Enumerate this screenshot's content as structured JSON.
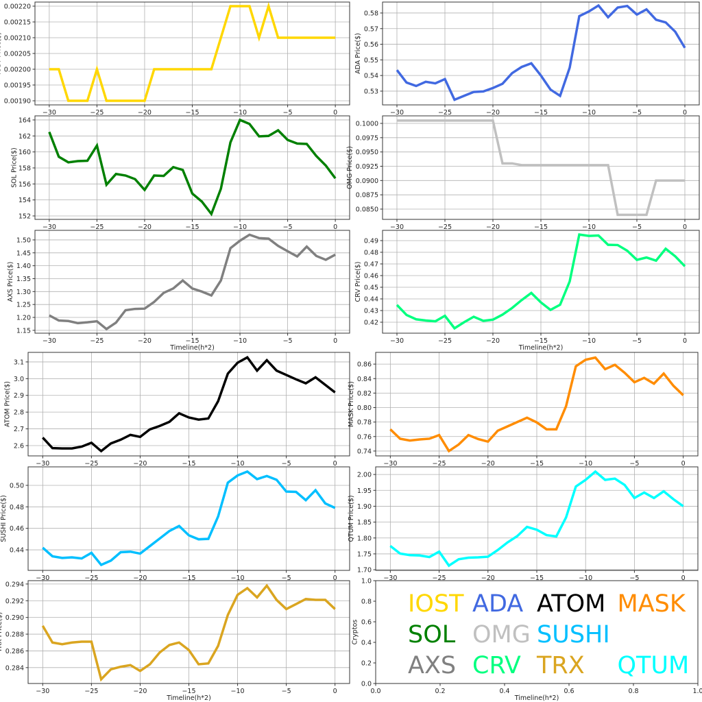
{
  "chart_data": {
    "type": "line",
    "x": [
      -30,
      -29,
      -28,
      -27,
      -26,
      -25,
      -24,
      -23,
      -22,
      -21,
      -20,
      -19,
      -18,
      -17,
      -16,
      -15,
      -14,
      -13,
      -12,
      -11,
      -10,
      -9,
      -8,
      -7,
      -6,
      -5,
      -4,
      -3,
      -2,
      -1,
      0
    ],
    "xlim": [
      -31.5,
      1.5
    ],
    "xticks": [
      "−30",
      "−25",
      "−20",
      "−15",
      "−10",
      "−5",
      "0"
    ],
    "panels": [
      {
        "name": "IOST",
        "ylabel": "IOST Price($)",
        "xlabel": "",
        "color": "#FFD700",
        "ylim": [
          0.001887,
          0.002213
        ],
        "yticks": [
          "0.00190",
          "0.00195",
          "0.00200",
          "0.00205",
          "0.00210",
          "0.00215",
          "0.00220"
        ],
        "values": [
          0.002,
          0.002,
          0.0019,
          0.0019,
          0.0019,
          0.002,
          0.0019,
          0.0019,
          0.0019,
          0.0019,
          0.0019,
          0.002,
          0.002,
          0.002,
          0.002,
          0.002,
          0.002,
          0.002,
          0.0021,
          0.0022,
          0.0022,
          0.0022,
          0.0021,
          0.0022,
          0.0021,
          0.0021,
          0.0021,
          0.0021,
          0.0021,
          0.0021,
          0.0021
        ]
      },
      {
        "name": "ADA",
        "ylabel": "ADA  Price($)",
        "xlabel": "",
        "color": "#4169E1",
        "ylim": [
          0.5212,
          0.587
        ],
        "yticks": [
          "0.53",
          "0.54",
          "0.55",
          "0.56",
          "0.57",
          "0.58"
        ],
        "values": [
          0.5435,
          0.5355,
          0.5333,
          0.536,
          0.535,
          0.5377,
          0.5245,
          0.527,
          0.5295,
          0.5298,
          0.532,
          0.5347,
          0.5415,
          0.5455,
          0.5478,
          0.54,
          0.531,
          0.527,
          0.545,
          0.578,
          0.581,
          0.5848,
          0.5773,
          0.5835,
          0.5845,
          0.579,
          0.5823,
          0.5757,
          0.574,
          0.568,
          0.5577
        ]
      },
      {
        "name": "SOL",
        "ylabel": "SOL Price($)",
        "xlabel": "",
        "color": "#008000",
        "ylim": [
          151.57,
          164.51
        ],
        "yticks": [
          "152",
          "154",
          "156",
          "158",
          "160",
          "162",
          "164"
        ],
        "values": [
          162.5,
          159.4,
          158.7,
          158.85,
          158.9,
          160.8,
          155.9,
          157.25,
          157.05,
          156.6,
          155.25,
          157.05,
          157.0,
          158.1,
          157.75,
          154.8,
          153.8,
          152.25,
          155.4,
          161.2,
          164.0,
          163.5,
          161.95,
          162.0,
          162.7,
          161.5,
          161.05,
          161.0,
          159.5,
          158.3,
          156.7
        ]
      },
      {
        "name": "OMG",
        "ylabel": "OMG  Price($)",
        "xlabel": "",
        "color": "#C0C0C0",
        "ylim": [
          0.0832,
          0.10132
        ],
        "yticks": [
          "0.0850",
          "0.0875",
          "0.0900",
          "0.0925",
          "0.0950",
          "0.0975",
          "0.1000"
        ],
        "values": [
          0.1005,
          0.1005,
          0.1005,
          0.1005,
          0.1005,
          0.1005,
          0.1005,
          0.1005,
          0.1005,
          0.1005,
          0.1005,
          0.093,
          0.093,
          0.0927,
          0.0927,
          0.0927,
          0.0927,
          0.0927,
          0.0927,
          0.0927,
          0.0927,
          0.0927,
          0.0927,
          0.084,
          0.084,
          0.084,
          0.084,
          0.09,
          0.09,
          0.09,
          0.09
        ]
      },
      {
        "name": "AXS",
        "ylabel": "AXS Price($)",
        "xlabel": "Timeline(h*2)",
        "color": "#808080",
        "ylim": [
          1.139,
          1.537
        ],
        "yticks": [
          "1.15",
          "1.20",
          "1.25",
          "1.30",
          "1.35",
          "1.40",
          "1.45",
          "1.50"
        ],
        "values": [
          1.208,
          1.188,
          1.186,
          1.178,
          1.181,
          1.185,
          1.155,
          1.18,
          1.228,
          1.233,
          1.234,
          1.26,
          1.295,
          1.312,
          1.343,
          1.312,
          1.3,
          1.285,
          1.343,
          1.468,
          1.497,
          1.52,
          1.507,
          1.505,
          1.477,
          1.456,
          1.436,
          1.474,
          1.438,
          1.423,
          1.443
        ]
      },
      {
        "name": "CRV",
        "ylabel": "CRV  Price($)",
        "xlabel": "Timeline(h*2)",
        "color": "#00FF7F",
        "ylim": [
          0.4106,
          0.4988
        ],
        "yticks": [
          "0.42",
          "0.43",
          "0.44",
          "0.45",
          "0.46",
          "0.47",
          "0.48",
          "0.49"
        ],
        "values": [
          0.4348,
          0.4262,
          0.4225,
          0.4215,
          0.4208,
          0.4255,
          0.4148,
          0.42,
          0.4247,
          0.4212,
          0.4222,
          0.4265,
          0.4322,
          0.439,
          0.4451,
          0.437,
          0.4306,
          0.435,
          0.455,
          0.4952,
          0.494,
          0.4944,
          0.4864,
          0.4862,
          0.4813,
          0.4735,
          0.4755,
          0.4728,
          0.483,
          0.4765,
          0.468
        ]
      },
      {
        "name": "ATOM",
        "ylabel": "ATOM  Price($)",
        "xlabel": "",
        "color": "#000000",
        "ylim": [
          2.5385,
          3.157
        ],
        "yticks": [
          "2.6",
          "2.7",
          "2.8",
          "2.9",
          "3.0",
          "3.1"
        ],
        "values": [
          2.648,
          2.585,
          2.583,
          2.583,
          2.594,
          2.617,
          2.567,
          2.613,
          2.635,
          2.664,
          2.652,
          2.697,
          2.717,
          2.742,
          2.793,
          2.768,
          2.755,
          2.762,
          2.865,
          3.03,
          3.095,
          3.127,
          3.048,
          3.11,
          3.048,
          3.022,
          2.996,
          2.972,
          3.008,
          2.963,
          2.918
        ]
      },
      {
        "name": "MASK",
        "ylabel": "MASK  Price($)",
        "xlabel": "",
        "color": "#FF8C00",
        "ylim": [
          0.7333,
          0.8762
        ],
        "yticks": [
          "0.74",
          "0.76",
          "0.78",
          "0.80",
          "0.82",
          "0.84",
          "0.86"
        ],
        "values": [
          0.77,
          0.757,
          0.7545,
          0.756,
          0.757,
          0.762,
          0.74,
          0.749,
          0.762,
          0.7565,
          0.753,
          0.768,
          0.774,
          0.78,
          0.786,
          0.7795,
          0.77,
          0.77,
          0.802,
          0.857,
          0.866,
          0.869,
          0.853,
          0.859,
          0.848,
          0.835,
          0.841,
          0.833,
          0.847,
          0.83,
          0.817
        ]
      },
      {
        "name": "SUSHI",
        "ylabel": "SUSHI  Price($)",
        "xlabel": "",
        "color": "#00BFFF",
        "ylim": [
          0.4209,
          0.5172
        ],
        "yticks": [
          "0.44",
          "0.46",
          "0.48",
          "0.50"
        ],
        "values": [
          0.442,
          0.434,
          0.4325,
          0.433,
          0.432,
          0.4372,
          0.426,
          0.43,
          0.4378,
          0.4383,
          0.4365,
          0.4435,
          0.4505,
          0.4575,
          0.4622,
          0.4535,
          0.4498,
          0.4502,
          0.471,
          0.5025,
          0.5092,
          0.5128,
          0.5058,
          0.5087,
          0.5052,
          0.4942,
          0.4939,
          0.4862,
          0.4955,
          0.4832,
          0.479
        ]
      },
      {
        "name": "QTUM",
        "ylabel": "QTUM Price($)",
        "xlabel": "",
        "color": "#00FFFF",
        "ylim": [
          1.698,
          2.024
        ],
        "yticks": [
          "1.70",
          "1.75",
          "1.80",
          "1.85",
          "1.90",
          "1.95",
          "2.00"
        ],
        "values": [
          1.775,
          1.751,
          1.746,
          1.745,
          1.74,
          1.757,
          1.713,
          1.733,
          1.738,
          1.739,
          1.741,
          1.762,
          1.786,
          1.806,
          1.835,
          1.826,
          1.809,
          1.805,
          1.865,
          1.962,
          1.983,
          2.009,
          1.983,
          1.987,
          1.967,
          1.926,
          1.943,
          1.926,
          1.947,
          1.922,
          1.9
        ]
      },
      {
        "name": "TRX",
        "ylabel": "TRX Price($)",
        "xlabel": "Timeline(h*2)",
        "color": "#DAA520",
        "ylim": [
          0.2821,
          0.2944
        ],
        "yticks": [
          "0.284",
          "0.286",
          "0.288",
          "0.290",
          "0.292",
          "0.294"
        ],
        "values": [
          0.289,
          0.287,
          0.2868,
          0.287,
          0.2871,
          0.2871,
          0.2826,
          0.2838,
          0.2841,
          0.2843,
          0.2836,
          0.2844,
          0.2858,
          0.2867,
          0.287,
          0.2861,
          0.2844,
          0.2845,
          0.2866,
          0.2903,
          0.2927,
          0.2935,
          0.2924,
          0.2938,
          0.2921,
          0.291,
          0.2916,
          0.2922,
          0.2921,
          0.2921,
          0.291
        ]
      }
    ],
    "legend_panel": {
      "ylabel": "Cryptos",
      "xlabel": "Timeline(h*2)",
      "xlim": [
        0,
        1
      ],
      "ylim": [
        0,
        1
      ],
      "xticks": [
        "0.0",
        "0.2",
        "0.4",
        "0.6",
        "0.8",
        "1.0"
      ],
      "yticks": [
        "0.0",
        "0.2",
        "0.4",
        "0.6",
        "0.8",
        "1.0"
      ],
      "entries": [
        {
          "label": "IOST",
          "color": "#FFD700"
        },
        {
          "label": "ADA",
          "color": "#4169E1"
        },
        {
          "label": "ATOM",
          "color": "#000000"
        },
        {
          "label": "MASK",
          "color": "#FF8C00"
        },
        {
          "label": "SOL",
          "color": "#008000"
        },
        {
          "label": "OMG",
          "color": "#C0C0C0"
        },
        {
          "label": "SUSHI",
          "color": "#00BFFF"
        },
        {
          "label": "AXS",
          "color": "#808080"
        },
        {
          "label": "CRV",
          "color": "#00FF7F"
        },
        {
          "label": "TRX",
          "color": "#DAA520"
        },
        {
          "label": "QTUM",
          "color": "#00FFFF"
        }
      ]
    }
  }
}
